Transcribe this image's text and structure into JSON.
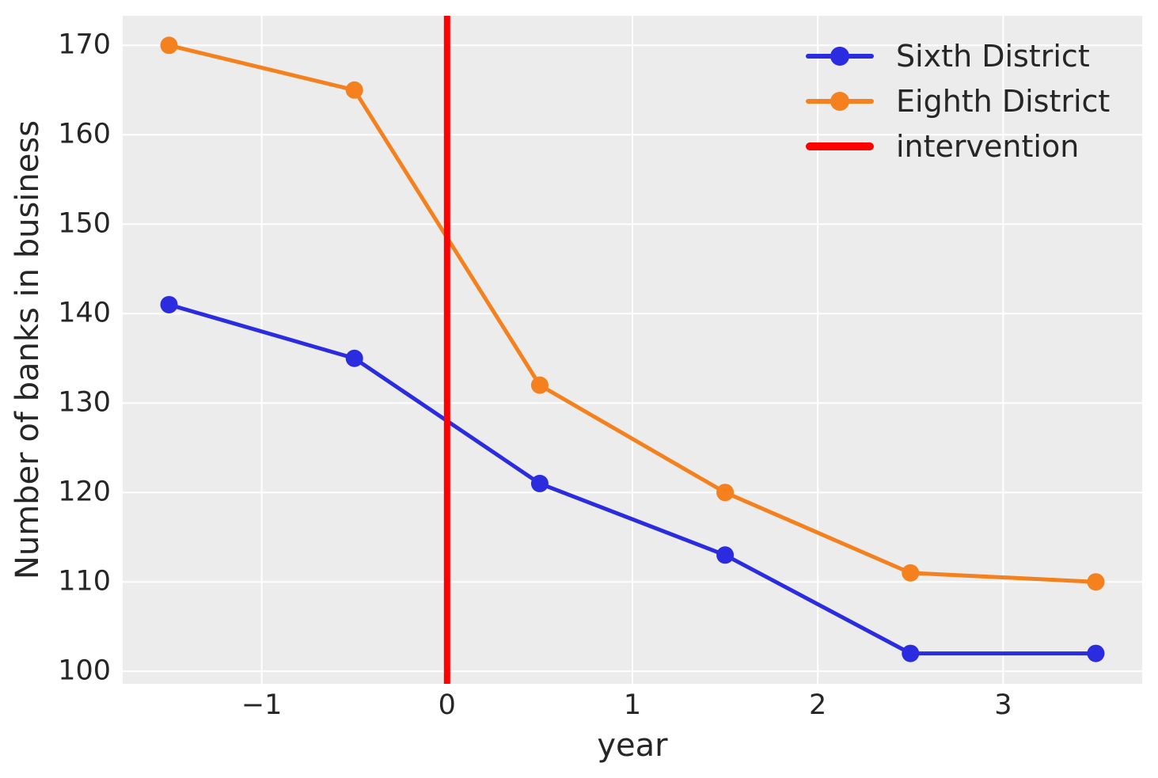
{
  "chart_data": {
    "type": "line",
    "title": "",
    "xlabel": "year",
    "ylabel": "Number of banks in business",
    "x": [
      -1.5,
      -0.5,
      0.5,
      1.5,
      2.5,
      3.5
    ],
    "series": [
      {
        "name": "Sixth District",
        "color": "#2b2be0",
        "values": [
          141,
          135,
          121,
          113,
          102,
          102
        ]
      },
      {
        "name": "Eighth District",
        "color": "#f5801e",
        "values": [
          170,
          165,
          132,
          120,
          111,
          110
        ]
      }
    ],
    "vline": {
      "label": "intervention",
      "x": 0,
      "color": "#ff0000"
    },
    "xlim": [
      -1.75,
      3.75
    ],
    "ylim": [
      98.6,
      173.3
    ],
    "xticks": [
      -1,
      0,
      1,
      2,
      3
    ],
    "xtick_labels": [
      "−1",
      "0",
      "1",
      "2",
      "3"
    ],
    "yticks": [
      100,
      110,
      120,
      130,
      140,
      150,
      160,
      170
    ],
    "ytick_labels": [
      "100",
      "110",
      "120",
      "130",
      "140",
      "150",
      "160",
      "170"
    ],
    "grid": true,
    "grid_color": "#ffffff",
    "plot_bg": "#ececec",
    "legend_position": "upper right",
    "line_width": 5,
    "marker_radius": 11,
    "vline_width": 8
  }
}
